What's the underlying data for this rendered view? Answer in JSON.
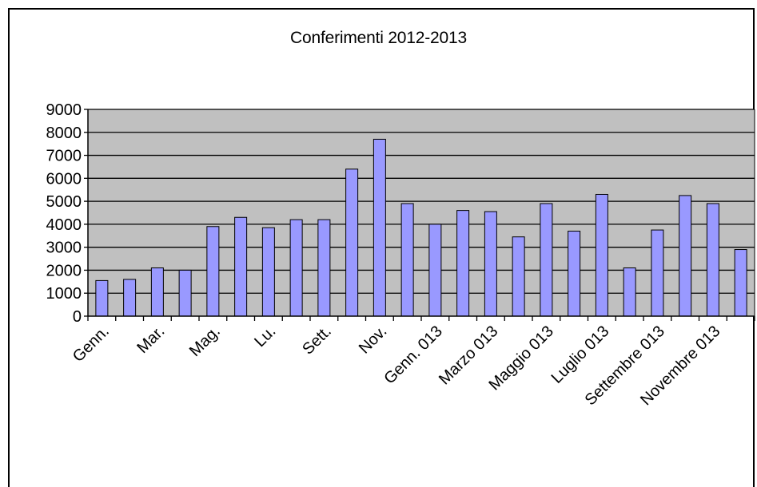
{
  "chart_data": {
    "type": "bar",
    "title": "Conferimenti 2012-2013",
    "xlabel": "",
    "ylabel": "",
    "ylim": [
      0,
      9000
    ],
    "yticks": [
      0,
      1000,
      2000,
      3000,
      4000,
      5000,
      6000,
      7000,
      8000,
      9000
    ],
    "grid": true,
    "legend": "none",
    "categories": [
      "Genn.",
      "",
      "Mar.",
      "",
      "Mag.",
      "",
      "Lu.",
      "",
      "Sett.",
      "",
      "Nov.",
      "",
      "Genn. 013",
      "",
      "Marzo 013",
      "",
      "Maggio 013",
      "",
      "Luglio 013",
      "",
      "Settembre 013",
      "",
      "Novembre 013",
      ""
    ],
    "values": [
      1550,
      1600,
      2100,
      2000,
      3900,
      4300,
      3850,
      4200,
      4200,
      6400,
      7700,
      4900,
      4000,
      4600,
      4550,
      3450,
      4900,
      3700,
      5300,
      2100,
      3750,
      5250,
      4900,
      2900
    ],
    "colors": {
      "bar": "#9999ff",
      "plot_bg": "#c0c0c0",
      "gridline": "#000000"
    }
  }
}
